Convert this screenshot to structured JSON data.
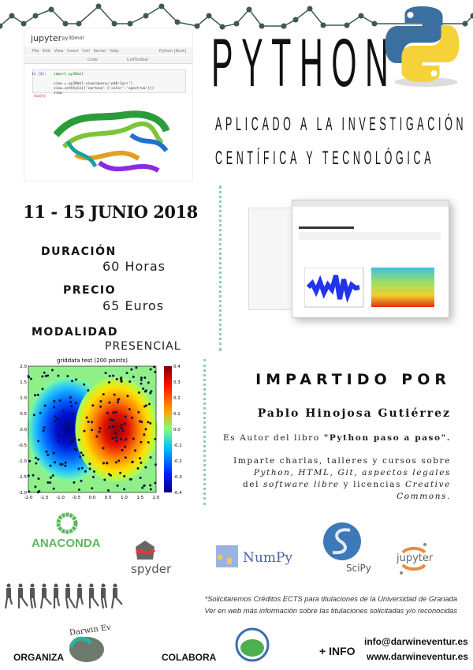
{
  "header": {
    "title": "PYTHON",
    "subtitle_line1": "APLICADO A LA INVESTIGACIÓN",
    "subtitle_line2": "CENTÍFICA Y TECNOLÓGICA"
  },
  "jupyter_screenshot": {
    "app": "jupyter",
    "notebook": "py3Dmol",
    "menu": [
      "File",
      "Edit",
      "View",
      "Insert",
      "Cell",
      "Kernel",
      "Help"
    ],
    "kernel": "Python [Root]",
    "cell_type": "Code",
    "toolbar_label": "CellToolbar",
    "prompt_in": "In [4]:",
    "prompt_out": "Out[4]:",
    "code": [
      "import py3Dmol",
      "",
      "view = py3Dmol.view(query='pdb:1ycr')",
      "view.setStyle({'cartoon':{'color':'spectrum'}})",
      "view"
    ]
  },
  "event": {
    "dates": "11 - 15 JUNIO 2018",
    "duration_label": "DURACIÓN",
    "duration_value": "60 Horas",
    "price_label": "PRECIO",
    "price_value": "65 Euros",
    "mode_label": "MODALIDAD",
    "mode_value": "PRESENCIAL"
  },
  "chart_data": {
    "type": "contour",
    "title": "griddata test (200 points)",
    "xlim": [
      -2.0,
      2.0
    ],
    "ylim": [
      -2.0,
      2.0
    ],
    "xticks": [
      "-2.0",
      "-1.5",
      "-1.0",
      "-0.5",
      "0.0",
      "0.5",
      "1.0",
      "1.5",
      "2.0"
    ],
    "yticks": [
      "2.0",
      "1.5",
      "1.0",
      "0.5",
      "0.0",
      "-0.5",
      "-1.0",
      "-1.5",
      "-2.0"
    ],
    "colorbar_ticks": [
      "0.4",
      "0.3",
      "0.2",
      "0.1",
      "0.0",
      "-0.1",
      "-0.2",
      "-0.3",
      "-0.4"
    ],
    "colorbar_range": [
      -0.4,
      0.4
    ],
    "minimum_center": [
      -0.75,
      0.0
    ],
    "maximum_center": [
      0.75,
      0.0
    ],
    "points": 200,
    "colormap": "jet"
  },
  "speaker": {
    "heading": "IMPARTIDO POR",
    "name": "Pablo Hinojosa Gutiérrez",
    "book_prefix": "Es Autor del libro ",
    "book_title": "\"Python paso a paso\".",
    "bio_l1": "Imparte charlas, talleres y cursos sobre",
    "bio_l2": "Python, HTML, Git, aspectos legales",
    "bio_l3a": "del ",
    "bio_l3b": "software libre",
    "bio_l3c": " y licencias ",
    "bio_l3d": "Creative",
    "bio_l4": "Commons."
  },
  "logos": {
    "anaconda": "ANACONDA",
    "spyder": "spyder",
    "numpy": "NumPy",
    "scipy": "SciPy",
    "jupyter": "jupyter"
  },
  "footer": {
    "note_l1": "*Solicitaremos Créditos ECTS para titulaciones de la Universidad de Granada",
    "note_l2": "Ver en web más información sobre las titulaciones solicitadas y/o reconocidas",
    "organiza": "ORGANIZA",
    "organizer_logo": "Darwin Eventur",
    "colabora": "COLABORA",
    "more_info": "+ INFO",
    "email": "info@darwineventur.es",
    "web": "www.darwineventur.es"
  },
  "colors": {
    "accent_dots": "#8fcbb3",
    "zigzag": "#3d5a4a",
    "python_blue": "#3b6fa0",
    "python_yellow": "#f5d23a"
  }
}
